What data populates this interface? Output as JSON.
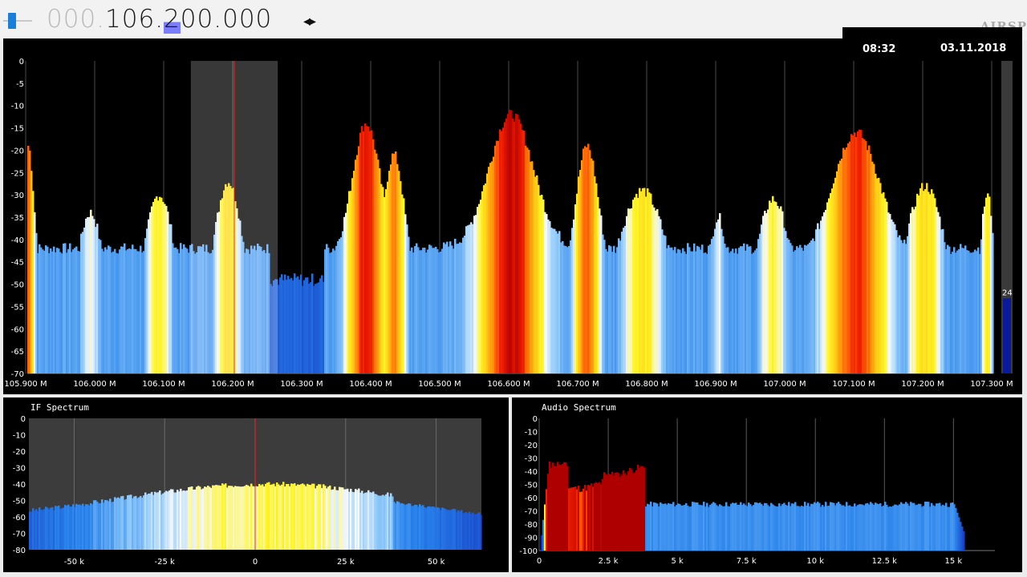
{
  "toolbar": {
    "frequency_dim": "000.",
    "frequency_main": "106.",
    "frequency_selected": "2",
    "frequency_tail": "00.000",
    "arrows": "◂▸",
    "logo": "AIRSP"
  },
  "status": {
    "time": "08:32",
    "date": "03.11.2018"
  },
  "main_spectrum": {
    "y_ticks": [
      "0",
      "-5",
      "-10",
      "-15",
      "-20",
      "-25",
      "-30",
      "-35",
      "-40",
      "-45",
      "-50",
      "-55",
      "-60",
      "-65",
      "-70"
    ],
    "x_ticks": [
      "105.900 M",
      "106.000 M",
      "106.100 M",
      "106.200 M",
      "106.300 M",
      "106.400 M",
      "106.500 M",
      "106.600 M",
      "106.700 M",
      "106.800 M",
      "106.900 M",
      "107.000 M",
      "107.100 M",
      "107.200 M",
      "107.300 M"
    ],
    "signal_level": "24",
    "signal_level_fraction": 0.24
  },
  "if_spectrum": {
    "title": "IF Spectrum",
    "y_ticks": [
      "0",
      "-10",
      "-20",
      "-30",
      "-40",
      "-50",
      "-60",
      "-70",
      "-80"
    ],
    "x_ticks": [
      "-50 k",
      "-25 k",
      "0",
      "25 k",
      "50 k"
    ]
  },
  "audio_spectrum": {
    "title": "Audio Spectrum",
    "y_ticks": [
      "0",
      "-10",
      "-20",
      "-30",
      "-40",
      "-50",
      "-60",
      "-70",
      "-80",
      "-90",
      "-100"
    ],
    "x_ticks": [
      "0",
      "2.5 k",
      "5 k",
      "7.5 k",
      "10 k",
      "12.5 k",
      "15 k"
    ]
  },
  "colors": {
    "accent_blue": "#1a7fd8",
    "tuner_line": "#ff2020",
    "grid": "#5a5a5a",
    "panel_bg": "#000000"
  }
}
